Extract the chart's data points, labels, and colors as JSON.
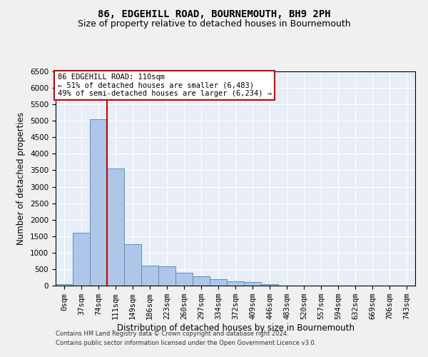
{
  "title": "86, EDGEHILL ROAD, BOURNEMOUTH, BH9 2PH",
  "subtitle": "Size of property relative to detached houses in Bournemouth",
  "xlabel": "Distribution of detached houses by size in Bournemouth",
  "ylabel": "Number of detached properties",
  "footer_line1": "Contains HM Land Registry data © Crown copyright and database right 2024.",
  "footer_line2": "Contains public sector information licensed under the Open Government Licence v3.0.",
  "bar_labels": [
    "0sqm",
    "37sqm",
    "74sqm",
    "111sqm",
    "149sqm",
    "186sqm",
    "223sqm",
    "260sqm",
    "297sqm",
    "334sqm",
    "372sqm",
    "409sqm",
    "446sqm",
    "483sqm",
    "520sqm",
    "557sqm",
    "594sqm",
    "632sqm",
    "669sqm",
    "706sqm",
    "743sqm"
  ],
  "bar_values": [
    50,
    1600,
    5050,
    3550,
    1250,
    600,
    575,
    400,
    275,
    200,
    140,
    100,
    50,
    0,
    0,
    0,
    0,
    0,
    0,
    0,
    0
  ],
  "bar_color": "#aec6e8",
  "bar_edge_color": "#5a8fc4",
  "background_color": "#e8eef7",
  "grid_color": "#ffffff",
  "ylim_max": 6500,
  "yticks": [
    0,
    500,
    1000,
    1500,
    2000,
    2500,
    3000,
    3500,
    4000,
    4500,
    5000,
    5500,
    6000,
    6500
  ],
  "property_label": "86 EDGEHILL ROAD: 110sqm",
  "annotation_line1": "← 51% of detached houses are smaller (6,483)",
  "annotation_line2": "49% of semi-detached houses are larger (6,234) →",
  "vline_x": 2.5,
  "annotation_box_color": "#ffffff",
  "annotation_box_edge_color": "#cc0000",
  "title_fontsize": 10,
  "subtitle_fontsize": 9,
  "tick_fontsize": 7.5,
  "annotation_fontsize": 7.5,
  "xlabel_fontsize": 8.5,
  "ylabel_fontsize": 8.5,
  "footer_fontsize": 6,
  "fig_width": 6.0,
  "fig_height": 5.0,
  "dpi": 100
}
